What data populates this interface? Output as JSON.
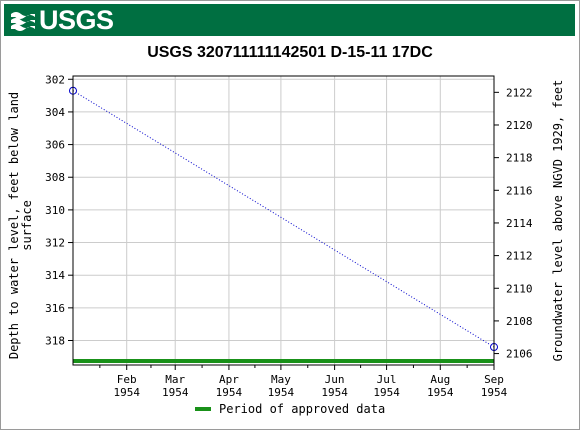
{
  "header": {
    "logo_text": "USGS",
    "brand_color": "#006f41"
  },
  "chart_data": {
    "type": "line",
    "title": "USGS 320711111142501 D-15-11 17DC",
    "ylabel_left": "Depth to water level, feet below land surface",
    "ylabel_left_lines": [
      "Depth to water level, feet below land",
      "surface"
    ],
    "ylabel_right": "Groundwater level above NGVD 1929, feet",
    "x_ticks": [
      {
        "month": "Feb",
        "year": "1954"
      },
      {
        "month": "Mar",
        "year": "1954"
      },
      {
        "month": "Apr",
        "year": "1954"
      },
      {
        "month": "May",
        "year": "1954"
      },
      {
        "month": "Jun",
        "year": "1954"
      },
      {
        "month": "Jul",
        "year": "1954"
      },
      {
        "month": "Aug",
        "year": "1954"
      },
      {
        "month": "Sep",
        "year": "1954"
      }
    ],
    "x_range": [
      "1954-01-01",
      "1954-09-01"
    ],
    "left_axis": {
      "ylim": [
        319.5,
        301.8
      ],
      "inverted": true,
      "ticks": [
        302,
        304,
        306,
        308,
        310,
        312,
        314,
        316,
        318
      ]
    },
    "right_axis": {
      "ticks": [
        2122,
        2120,
        2118,
        2116,
        2114,
        2112,
        2110,
        2108,
        2106
      ]
    },
    "right_axis_offset": 2424.8,
    "grid": true,
    "series": [
      {
        "x": [
          "1954-01-01",
          "1954-09-01"
        ],
        "y": [
          302.7,
          318.4
        ],
        "color": "#0000cc",
        "line_style": "dotted",
        "marker": "open-circle"
      }
    ],
    "approved_period": {
      "start": "1954-01-01",
      "end": "1954-09-01",
      "color": "#199119"
    },
    "legend": {
      "label": "Period of approved data",
      "placement": "bottom"
    }
  }
}
